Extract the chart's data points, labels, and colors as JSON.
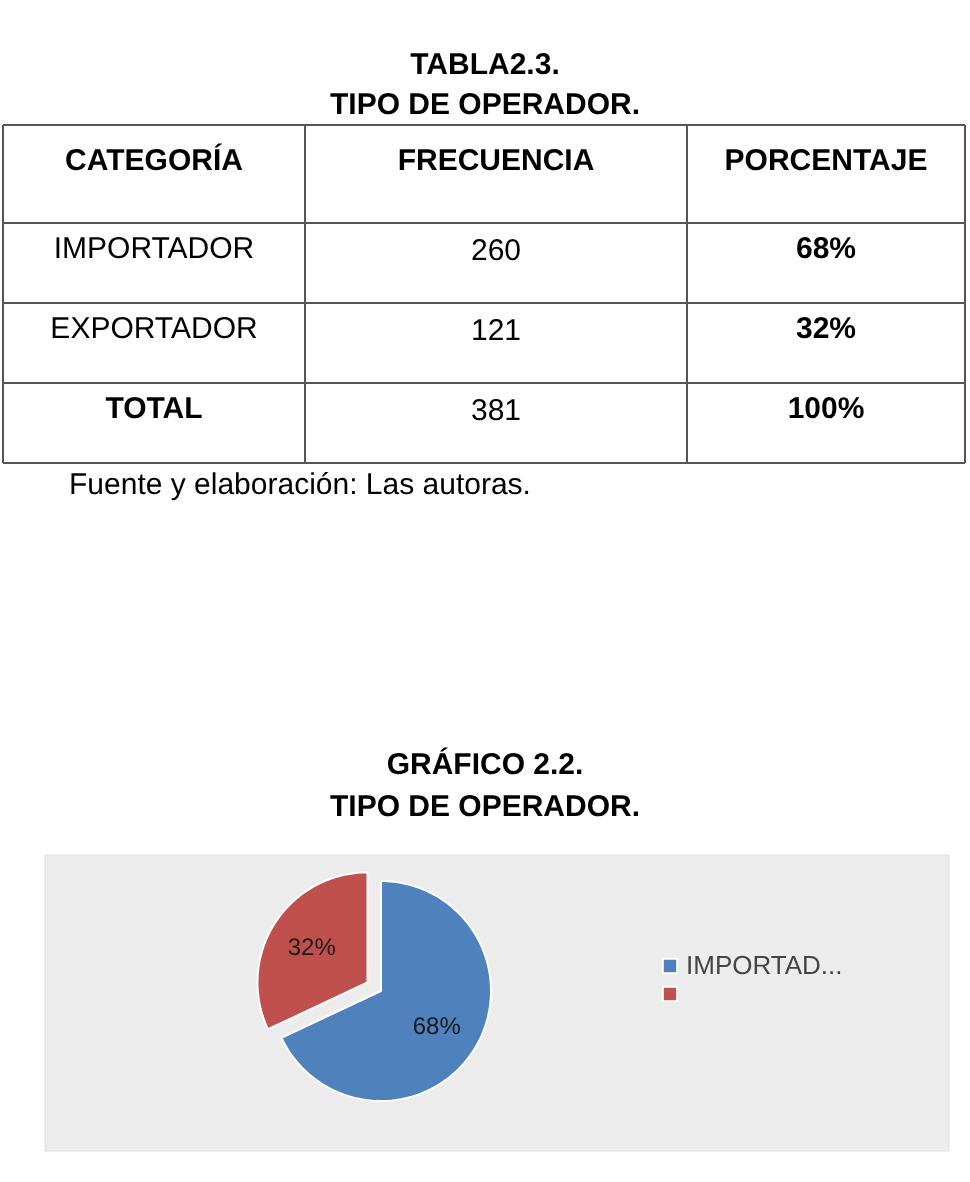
{
  "chart_data": [
    {
      "type": "other",
      "title": "TABLA2.3.",
      "subtitle": "TIPO DE OPERADOR.",
      "annotations": [
        "CATEGORÍA",
        "FRECUENCIA",
        "PORCENTAJE",
        "IMPORTADOR",
        "260",
        "68%",
        "EXPORTADOR",
        "121",
        "32%",
        "TOTAL",
        "381",
        "100%",
        "Fuente y elaboración: Las autoras."
      ]
    },
    {
      "type": "pie",
      "title": "GRÁFICO 2.2.",
      "subtitle": "TIPO DE OPERADOR.",
      "categories": [
        "IMPORTAD...",
        null
      ],
      "values": [
        68,
        32
      ],
      "colors": [
        "#4f81bd",
        "#c0504d"
      ],
      "value_labels": [
        "68%",
        "32%"
      ],
      "legend": "right"
    }
  ]
}
